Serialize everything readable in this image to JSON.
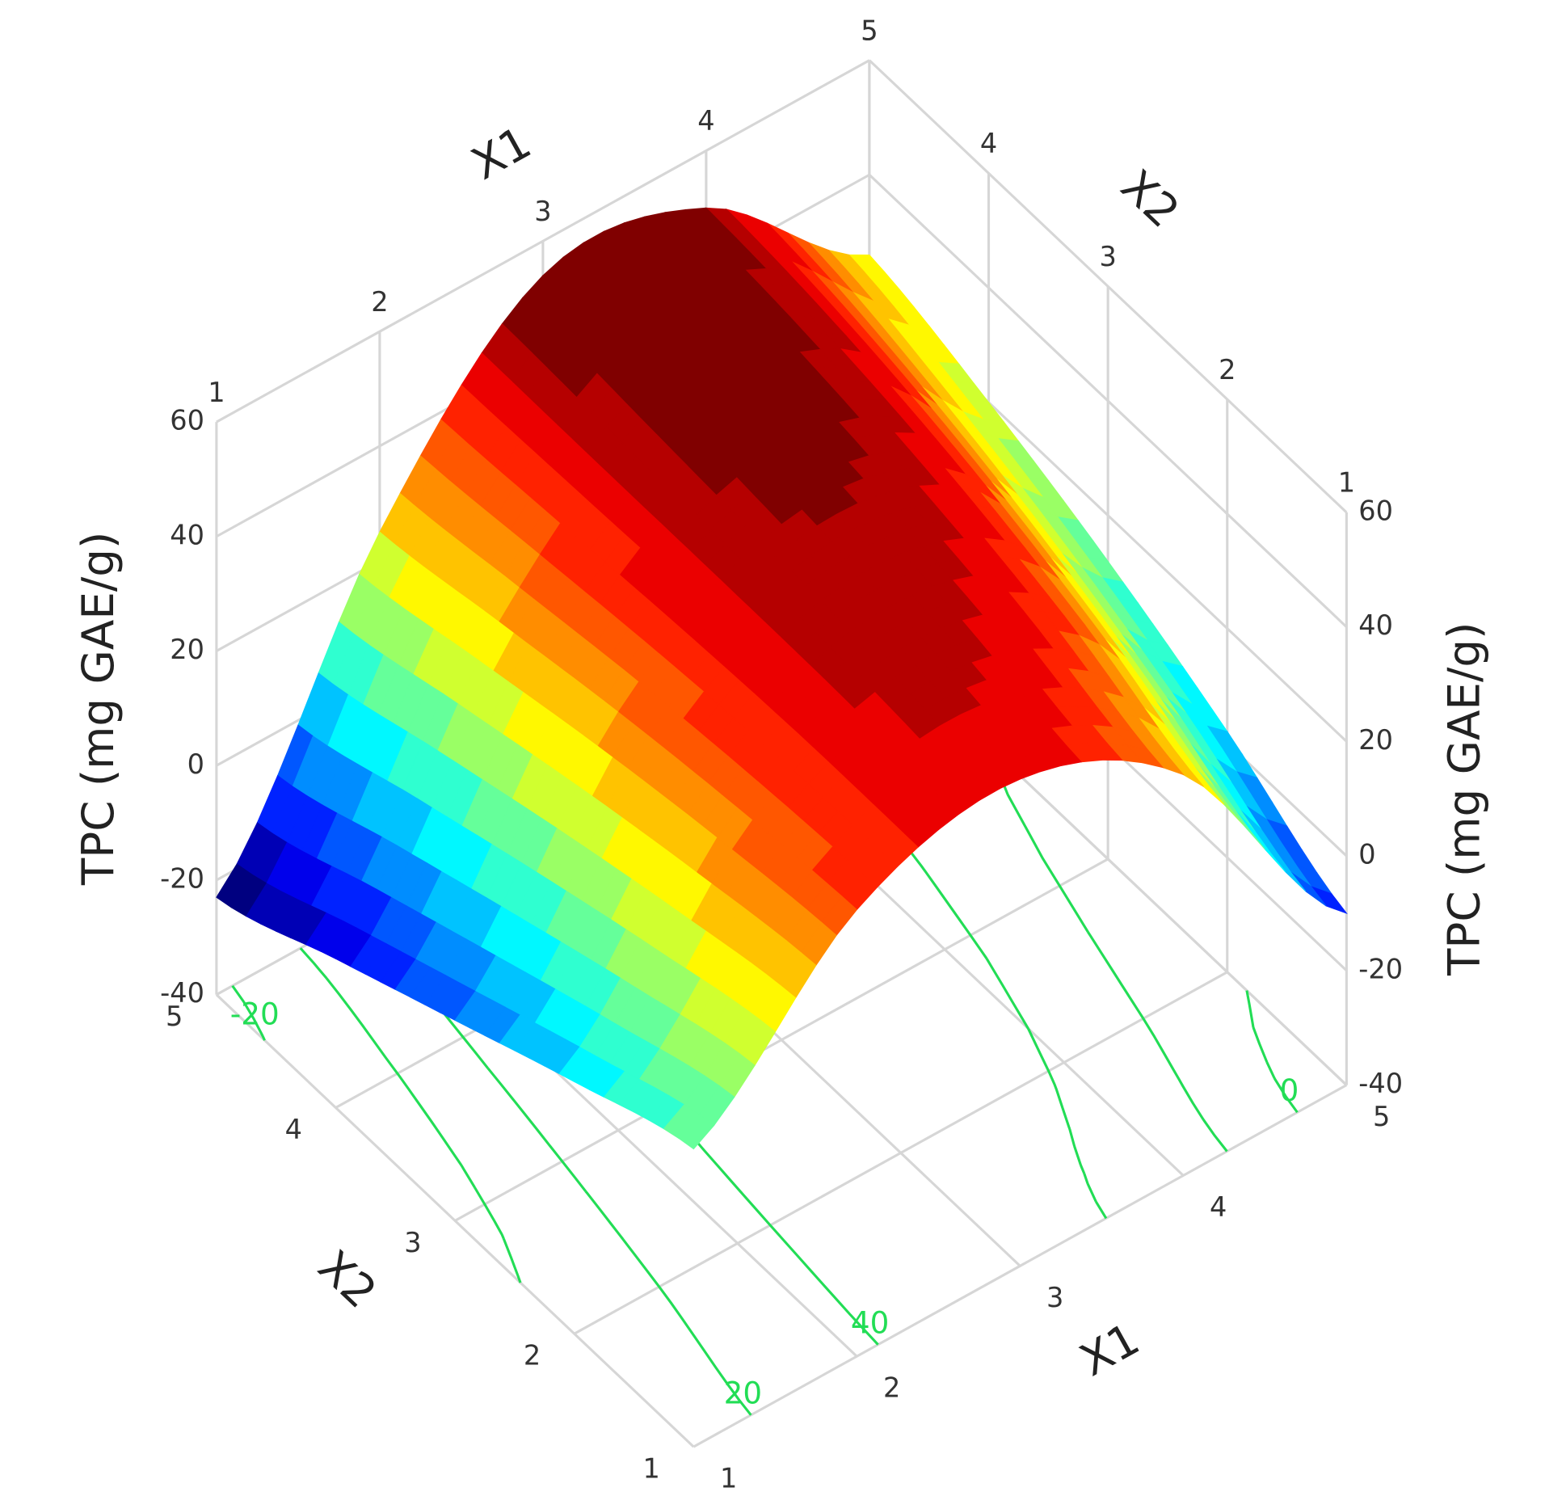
{
  "chart_data": {
    "type": "surface3d",
    "x_label": "X1",
    "y_label": "X2",
    "z_label": "TPC (mg GAE/g)",
    "x": [
      1,
      2,
      3,
      4,
      5
    ],
    "y": [
      1,
      2,
      3,
      4,
      5
    ],
    "z": [
      [
        12,
        38,
        45,
        30,
        -10
      ],
      [
        4,
        36,
        48,
        38,
        2
      ],
      [
        -5,
        33,
        50,
        44,
        12
      ],
      [
        -14,
        29,
        52,
        48,
        20
      ],
      [
        -23,
        25,
        54,
        50,
        26
      ]
    ],
    "xlim": [
      1,
      5
    ],
    "ylim": [
      1,
      5
    ],
    "zlim": [
      -40,
      60
    ],
    "xticks": [
      1,
      2,
      3,
      4,
      5
    ],
    "yticks": [
      1,
      2,
      3,
      4,
      5
    ],
    "zticks": [
      -40,
      -20,
      0,
      20,
      40,
      60
    ],
    "colormap": "jet",
    "color_levels": 20,
    "contour_levels": [
      -20,
      0,
      20,
      40
    ],
    "contour_color": "#22dd55",
    "grid": true
  }
}
